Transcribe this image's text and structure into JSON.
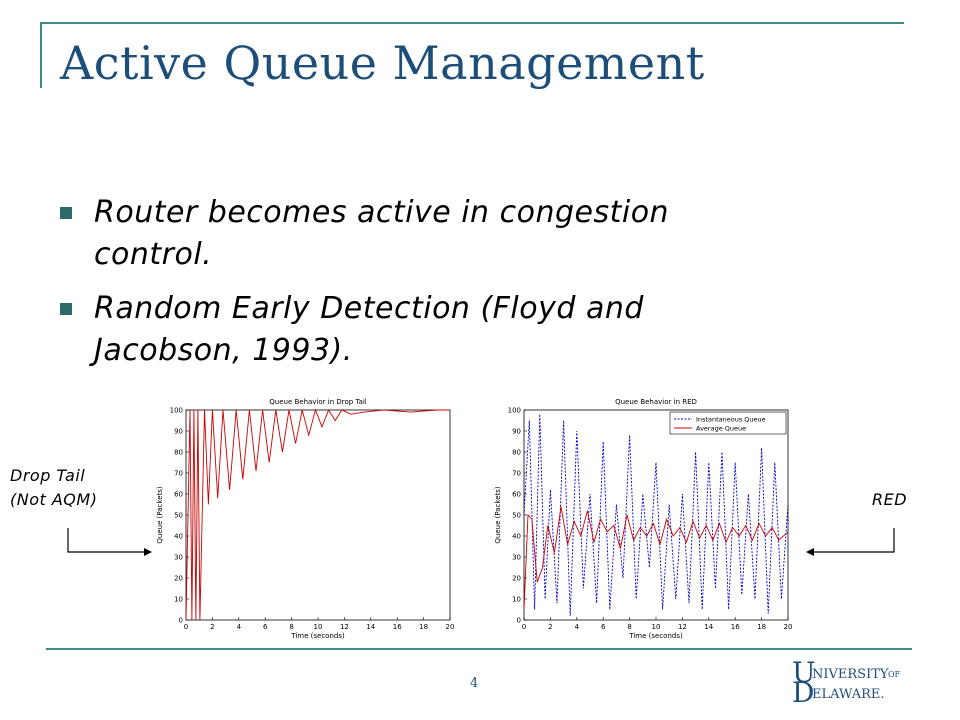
{
  "slide": {
    "title": "Active Queue Management",
    "bullets": [
      {
        "line1": "Router becomes active in congestion",
        "line2": "control."
      },
      {
        "line1": "Random Early Detection (Floyd and",
        "line2": "Jacobson, 1993)."
      }
    ],
    "labels": {
      "drop_tail_line1": "Drop Tail",
      "drop_tail_line2": "(Not AQM)",
      "red": "RED"
    },
    "page_number": "4",
    "logo": {
      "text": "UNIVERSITY OF DELAWARE",
      "color": "#1d4e7a"
    },
    "colors": {
      "title": "#1d4e7a",
      "frame": "#3a8a8a",
      "bullet": "#2d6a6a",
      "red_line": "#cc0000",
      "blue_line": "#0000cc"
    }
  },
  "chart_data": [
    {
      "type": "line",
      "title": "Queue Behavior in Drop Tail",
      "xlabel": "Time (seconds)",
      "ylabel": "Queue (Packets)",
      "xlim": [
        0,
        20
      ],
      "ylim": [
        0,
        100
      ],
      "xticks": [
        0,
        2,
        4,
        6,
        8,
        10,
        12,
        14,
        16,
        18,
        20
      ],
      "yticks": [
        0,
        10,
        20,
        30,
        40,
        50,
        60,
        70,
        80,
        90,
        100
      ],
      "series": [
        {
          "color": "#cc0000",
          "style": "solid",
          "x": [
            0,
            0.3,
            0.45,
            0.6,
            0.75,
            0.9,
            1.05,
            1.4,
            1.7,
            2.0,
            2.4,
            2.8,
            3.3,
            3.8,
            4.3,
            4.8,
            5.3,
            5.8,
            6.3,
            6.8,
            7.3,
            7.8,
            8.3,
            8.8,
            9.3,
            9.8,
            10.3,
            10.8,
            11.3,
            11.8,
            12.5,
            13.5,
            15,
            17,
            19,
            20
          ],
          "y": [
            0,
            100,
            0,
            100,
            0,
            100,
            0,
            100,
            55,
            100,
            58,
            100,
            62,
            100,
            67,
            100,
            71,
            100,
            75,
            100,
            80,
            100,
            84,
            100,
            88,
            100,
            92,
            100,
            95,
            100,
            98,
            99,
            100,
            99,
            100,
            100
          ]
        }
      ]
    },
    {
      "type": "line",
      "title": "Queue Behavior in RED",
      "xlabel": "Time (seconds)",
      "ylabel": "Queue (Packets)",
      "xlim": [
        0,
        20
      ],
      "ylim": [
        0,
        100
      ],
      "xticks": [
        0,
        2,
        4,
        6,
        8,
        10,
        12,
        14,
        16,
        18,
        20
      ],
      "yticks": [
        0,
        10,
        20,
        30,
        40,
        50,
        60,
        70,
        80,
        90,
        100
      ],
      "legend": [
        "Instantaneous Queue",
        "Average Queue"
      ],
      "legend_position": "top-right",
      "series": [
        {
          "name": "Instantaneous Queue",
          "color": "#0000cc",
          "style": "dashed",
          "x": [
            0,
            0.4,
            0.8,
            1.2,
            1.6,
            2.0,
            2.5,
            3.0,
            3.5,
            4.0,
            4.5,
            5.0,
            5.5,
            6.0,
            6.5,
            7.0,
            7.5,
            8.0,
            8.5,
            9.0,
            9.5,
            10.0,
            10.5,
            11.0,
            11.5,
            12.0,
            12.5,
            13.0,
            13.5,
            14.0,
            14.5,
            15.0,
            15.5,
            16.0,
            16.5,
            17.0,
            17.5,
            18.0,
            18.5,
            19.0,
            19.5,
            20.0
          ],
          "y": [
            50,
            95,
            5,
            98,
            10,
            62,
            8,
            95,
            2,
            90,
            15,
            60,
            8,
            85,
            5,
            55,
            20,
            88,
            10,
            60,
            25,
            75,
            5,
            55,
            10,
            60,
            8,
            80,
            5,
            75,
            15,
            80,
            5,
            75,
            12,
            60,
            10,
            82,
            3,
            75,
            10,
            55
          ]
        },
        {
          "name": "Average Queue",
          "color": "#cc0000",
          "style": "solid",
          "x": [
            0,
            0.3,
            0.6,
            1.0,
            1.4,
            1.8,
            2.3,
            2.8,
            3.3,
            3.8,
            4.3,
            4.8,
            5.3,
            5.8,
            6.3,
            6.8,
            7.3,
            7.8,
            8.3,
            8.8,
            9.3,
            9.8,
            10.3,
            10.8,
            11.3,
            11.8,
            12.3,
            12.8,
            13.3,
            13.8,
            14.3,
            14.8,
            15.3,
            15.8,
            16.3,
            16.8,
            17.3,
            17.8,
            18.3,
            18.8,
            19.3,
            20.0
          ],
          "y": [
            5,
            50,
            48,
            18,
            25,
            45,
            32,
            54,
            36,
            47,
            40,
            52,
            37,
            48,
            42,
            45,
            34,
            50,
            38,
            44,
            40,
            46,
            36,
            48,
            40,
            44,
            37,
            47,
            39,
            45,
            38,
            46,
            37,
            44,
            40,
            45,
            38,
            46,
            40,
            44,
            38,
            42
          ]
        }
      ]
    }
  ]
}
